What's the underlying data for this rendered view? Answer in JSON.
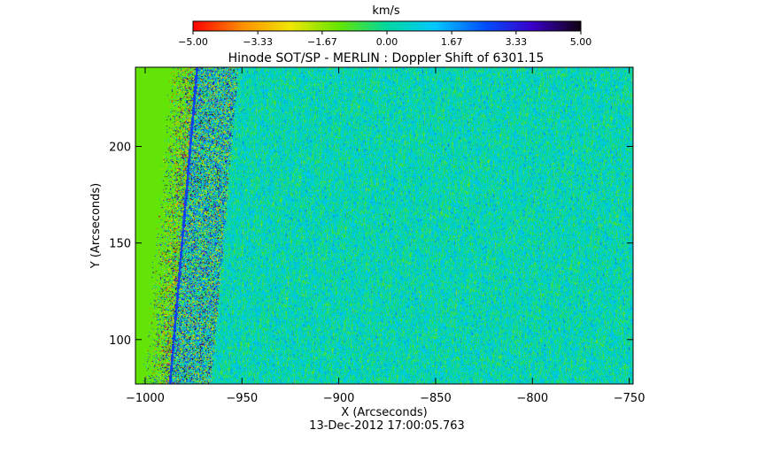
{
  "chart_data": {
    "type": "heatmap",
    "title": "Hinode SOT/SP - MERLIN : Doppler Shift of 6301.15",
    "subtitle": "13-Dec-2012 17:00:05.763",
    "xlabel": "X (Arcseconds)",
    "ylabel": "Y (Arcseconds)",
    "xlim": [
      -1005,
      -748
    ],
    "ylim": [
      77,
      241
    ],
    "x_ticks": [
      -1000,
      -950,
      -900,
      -850,
      -800,
      -750
    ],
    "y_ticks": [
      100,
      150,
      200
    ],
    "x_tick_labels": [
      "−1000",
      "−950",
      "−900",
      "−850",
      "−800",
      "−750"
    ],
    "y_tick_labels": [
      "100",
      "150",
      "200"
    ],
    "colorbar": {
      "label": "km/s",
      "range": [
        -5.0,
        5.0
      ],
      "ticks": [
        -5.0,
        -3.33,
        -1.67,
        0.0,
        1.67,
        3.33,
        5.0
      ],
      "tick_labels": [
        "−5.00",
        "−3.33",
        "−1.67",
        "0.00",
        "1.67",
        "3.33",
        "5.00"
      ],
      "colors": [
        "#ff0000",
        "#ff8c00",
        "#f2e600",
        "#66e600",
        "#00d7a0",
        "#00c8ff",
        "#0050ff",
        "#3a00c8",
        "#100010"
      ]
    },
    "off_limb_value": -1.2,
    "limb_x_at_ymin": -988,
    "limb_x_at_ymax": -974,
    "field_mean": 0.35,
    "field_spread": 1.3
  }
}
